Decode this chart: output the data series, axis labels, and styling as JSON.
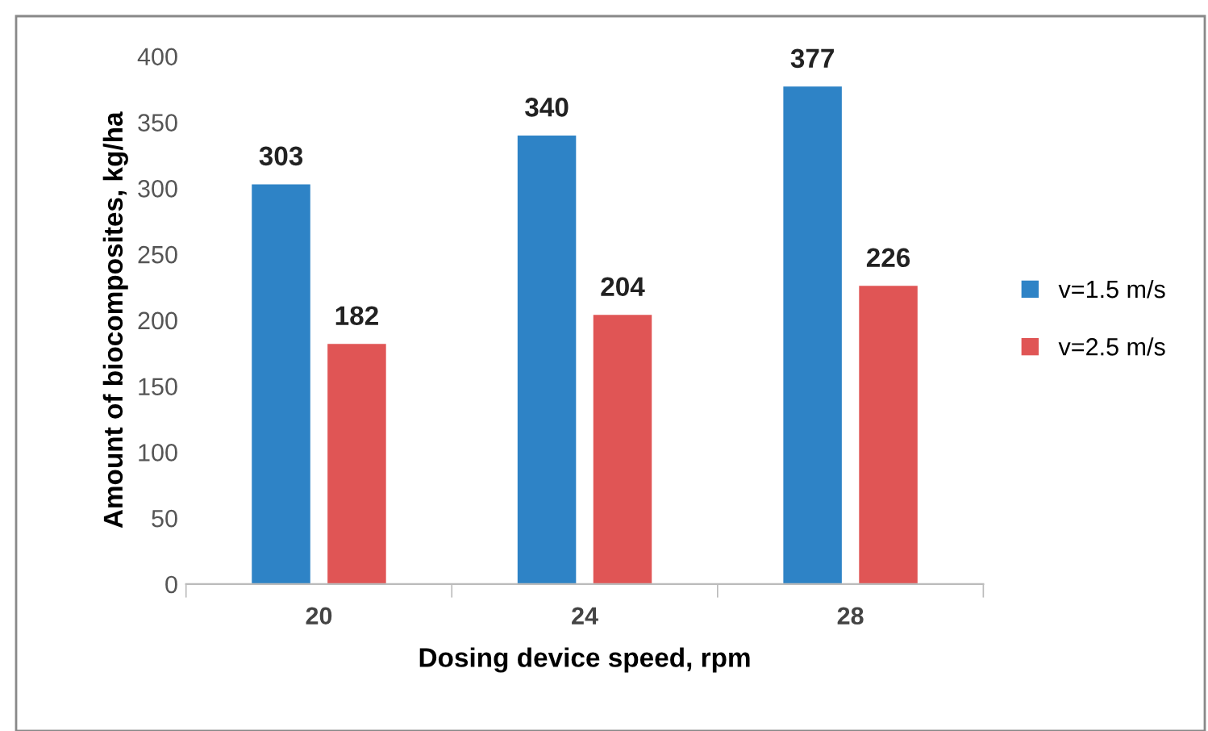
{
  "chart_data": {
    "type": "bar",
    "xlabel": "Dosing device speed, rpm",
    "ylabel": "Amount of biocomposites, kg/ha",
    "categories": [
      "20",
      "24",
      "28"
    ],
    "series": [
      {
        "name": "v=1.5 m/s",
        "color": "#2e83c6",
        "values": [
          303,
          340,
          377
        ]
      },
      {
        "name": "v=2.5 m/s",
        "color": "#e05555",
        "values": [
          182,
          204,
          226
        ]
      }
    ],
    "ylim": [
      0,
      400
    ],
    "yticks": [
      0,
      50,
      100,
      150,
      200,
      250,
      300,
      350,
      400
    ],
    "grid": false,
    "legend": "right",
    "data_labels": true
  }
}
